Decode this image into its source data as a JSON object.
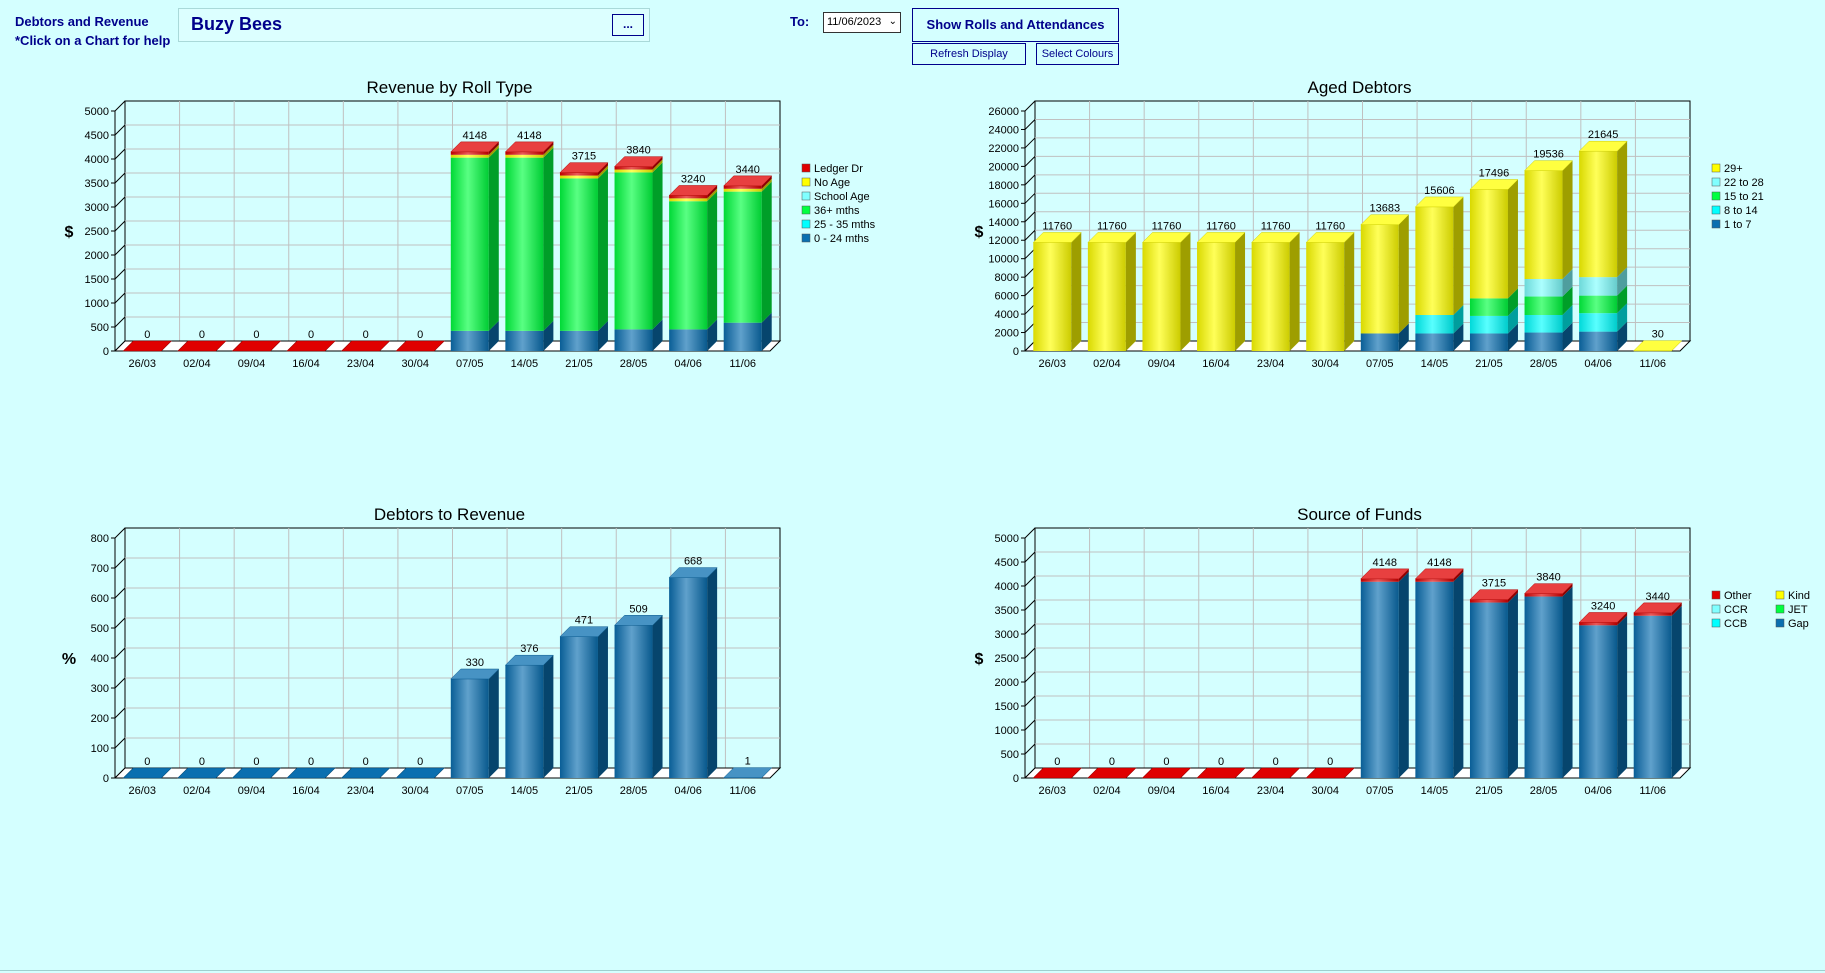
{
  "header": {
    "title": "Debtors and Revenue",
    "help": "*Click on a Chart for help",
    "centre_name": "Buzy Bees",
    "browse_label": "...",
    "to_label": "To:",
    "date_value": "11/06/2023",
    "show_rolls_label": "Show Rolls and Attendances",
    "refresh_label": "Refresh Display",
    "colours_label": "Select Colours"
  },
  "colors": {
    "background": "#d4ffff",
    "header_text": "#00008b",
    "red": "#e00000",
    "yellow": "#ffff00",
    "light_cyan": "#80ffff",
    "green": "#00ff40",
    "cyan": "#00ffff",
    "blue": "#0a6fb0"
  },
  "chart_data": [
    {
      "id": "revenue",
      "type": "bar",
      "stacked": true,
      "title": "Revenue by Roll Type",
      "ylabel": "$",
      "ylim": [
        0,
        5000
      ],
      "yticks": [
        0,
        500,
        1000,
        1500,
        2000,
        2500,
        3000,
        3500,
        4000,
        4500,
        5000
      ],
      "grid": true,
      "legend_position": "right",
      "categories": [
        "26/03",
        "02/04",
        "09/04",
        "16/04",
        "23/04",
        "30/04",
        "07/05",
        "14/05",
        "21/05",
        "28/05",
        "04/06",
        "11/06"
      ],
      "series": [
        {
          "name": "0  - 24 mths",
          "color": "#0a6fb0",
          "values": [
            0,
            0,
            0,
            0,
            0,
            0,
            420,
            420,
            420,
            450,
            450,
            590
          ]
        },
        {
          "name": "25 - 35 mths",
          "color": "#00ffff",
          "values": [
            0,
            0,
            0,
            0,
            0,
            0,
            0,
            0,
            0,
            0,
            0,
            0
          ]
        },
        {
          "name": "36+ mths",
          "color": "#00ff40",
          "values": [
            0,
            0,
            0,
            0,
            0,
            0,
            3608,
            3608,
            3175,
            3270,
            2670,
            2730
          ]
        },
        {
          "name": "School Age",
          "color": "#80ffff",
          "values": [
            0,
            0,
            0,
            0,
            0,
            0,
            0,
            0,
            0,
            0,
            0,
            0
          ]
        },
        {
          "name": "No Age",
          "color": "#ffff00",
          "values": [
            0,
            0,
            0,
            0,
            0,
            0,
            60,
            60,
            60,
            60,
            60,
            60
          ]
        },
        {
          "name": "Ledger Dr",
          "color": "#e00000",
          "values": [
            0,
            0,
            0,
            0,
            0,
            0,
            60,
            60,
            60,
            60,
            60,
            60
          ]
        }
      ],
      "totals": [
        0,
        0,
        0,
        0,
        0,
        0,
        4148,
        4148,
        3715,
        3840,
        3240,
        3440
      ],
      "zero_color": "#e00000"
    },
    {
      "id": "aged",
      "type": "bar",
      "stacked": true,
      "title": "Aged Debtors",
      "ylabel": "$",
      "ylim": [
        0,
        26000
      ],
      "yticks": [
        0,
        2000,
        4000,
        6000,
        8000,
        10000,
        12000,
        14000,
        16000,
        18000,
        20000,
        22000,
        24000,
        26000
      ],
      "grid": true,
      "legend_position": "right",
      "categories": [
        "26/03",
        "02/04",
        "09/04",
        "16/04",
        "23/04",
        "30/04",
        "07/05",
        "14/05",
        "21/05",
        "28/05",
        "04/06",
        "11/06"
      ],
      "series": [
        {
          "name": "1 to 7",
          "color": "#0a6fb0",
          "values": [
            0,
            0,
            0,
            0,
            0,
            0,
            1900,
            1900,
            1900,
            2000,
            2100,
            0
          ]
        },
        {
          "name": "8 to 14",
          "color": "#00ffff",
          "values": [
            0,
            0,
            0,
            0,
            0,
            0,
            0,
            2000,
            1900,
            1900,
            2000,
            0
          ]
        },
        {
          "name": "15 to 21",
          "color": "#00ff40",
          "values": [
            0,
            0,
            0,
            0,
            0,
            0,
            0,
            0,
            1900,
            2000,
            1900,
            0
          ]
        },
        {
          "name": "22 to 28",
          "color": "#80ffff",
          "values": [
            0,
            0,
            0,
            0,
            0,
            0,
            0,
            0,
            0,
            1900,
            2000,
            0
          ]
        },
        {
          "name": "29+",
          "color": "#ffff00",
          "values": [
            11760,
            11760,
            11760,
            11760,
            11760,
            11760,
            11783,
            11706,
            11796,
            11736,
            13645,
            30
          ]
        }
      ],
      "totals": [
        11760,
        11760,
        11760,
        11760,
        11760,
        11760,
        13683,
        15606,
        17496,
        19536,
        21645,
        30
      ],
      "zero_color": "#ffff00"
    },
    {
      "id": "ratio",
      "type": "bar",
      "stacked": true,
      "title": "Debtors to Revenue",
      "ylabel": "%",
      "ylim": [
        0,
        800
      ],
      "yticks": [
        0,
        100,
        200,
        300,
        400,
        500,
        600,
        700,
        800
      ],
      "grid": true,
      "legend_position": "none",
      "categories": [
        "26/03",
        "02/04",
        "09/04",
        "16/04",
        "23/04",
        "30/04",
        "07/05",
        "14/05",
        "21/05",
        "28/05",
        "04/06",
        "11/06"
      ],
      "series": [
        {
          "color": "#0a6fb0",
          "values": [
            0,
            0,
            0,
            0,
            0,
            0,
            330,
            376,
            471,
            509,
            668,
            1
          ]
        }
      ],
      "totals": [
        0,
        0,
        0,
        0,
        0,
        0,
        330,
        376,
        471,
        509,
        668,
        1
      ],
      "zero_color": "#0a6fb0"
    },
    {
      "id": "funds",
      "type": "bar",
      "stacked": true,
      "title": "Source of Funds",
      "ylabel": "$",
      "ylim": [
        0,
        5000
      ],
      "yticks": [
        0,
        500,
        1000,
        1500,
        2000,
        2500,
        3000,
        3500,
        4000,
        4500,
        5000
      ],
      "grid": true,
      "legend_position": "right",
      "legend_columns": 2,
      "legend_order": [
        "Other",
        "Kind",
        "CCR",
        "JET",
        "CCB",
        "Gap"
      ],
      "categories": [
        "26/03",
        "02/04",
        "09/04",
        "16/04",
        "23/04",
        "30/04",
        "07/05",
        "14/05",
        "21/05",
        "28/05",
        "04/06",
        "11/06"
      ],
      "series": [
        {
          "name": "Gap",
          "color": "#0a6fb0",
          "values": [
            0,
            0,
            0,
            0,
            0,
            0,
            4088,
            4088,
            3655,
            3780,
            3180,
            3380
          ]
        },
        {
          "name": "CCB",
          "color": "#00ffff",
          "values": [
            0,
            0,
            0,
            0,
            0,
            0,
            0,
            0,
            0,
            0,
            0,
            0
          ]
        },
        {
          "name": "JET",
          "color": "#00ff40",
          "values": [
            0,
            0,
            0,
            0,
            0,
            0,
            0,
            0,
            0,
            0,
            0,
            0
          ]
        },
        {
          "name": "CCR",
          "color": "#80ffff",
          "values": [
            0,
            0,
            0,
            0,
            0,
            0,
            0,
            0,
            0,
            0,
            0,
            0
          ]
        },
        {
          "name": "Kind",
          "color": "#ffff00",
          "values": [
            0,
            0,
            0,
            0,
            0,
            0,
            0,
            0,
            0,
            0,
            0,
            0
          ]
        },
        {
          "name": "Other",
          "color": "#e00000",
          "values": [
            0,
            0,
            0,
            0,
            0,
            0,
            60,
            60,
            60,
            60,
            60,
            60
          ]
        }
      ],
      "totals": [
        0,
        0,
        0,
        0,
        0,
        0,
        4148,
        4148,
        3715,
        3840,
        3240,
        3440
      ],
      "zero_color": "#e00000"
    }
  ]
}
